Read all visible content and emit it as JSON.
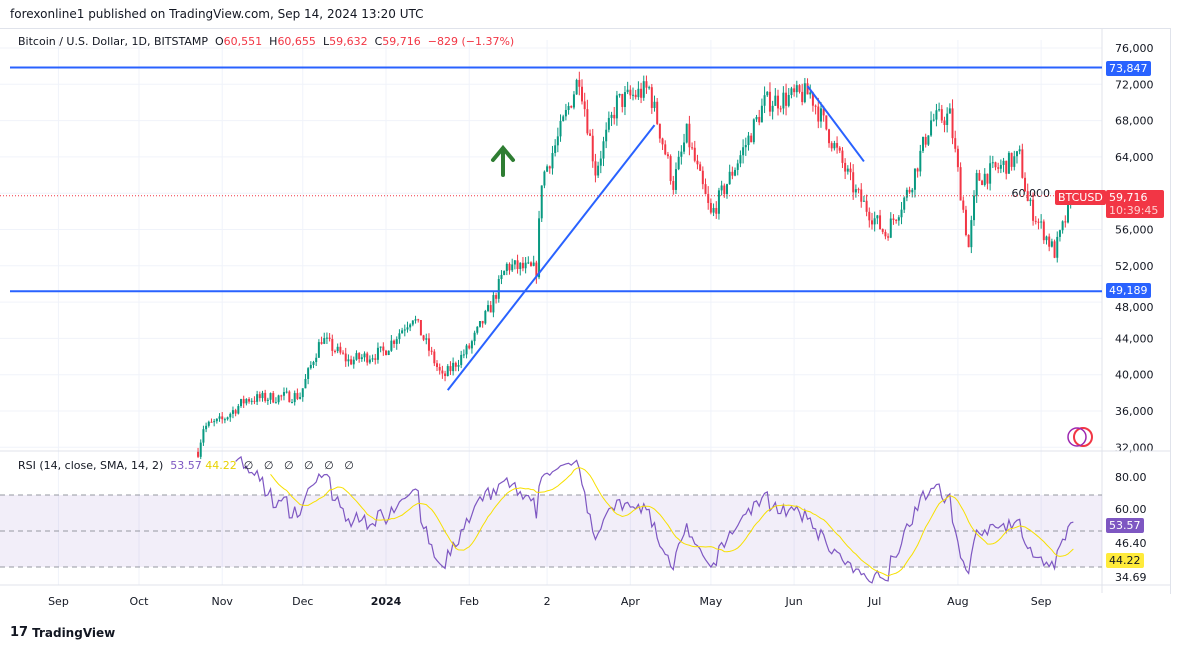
{
  "header": {
    "published": "forexonline1 published on TradingView.com, Sep 14, 2024 13:20 UTC"
  },
  "legend": {
    "symbol": "Bitcoin / U.S. Dollar, 1D, BITSTAMP",
    "o_label": "O",
    "o": "60,551",
    "h_label": "H",
    "h": "60,655",
    "l_label": "L",
    "l": "59,632",
    "c_label": "C",
    "c": "59,716",
    "change": "−829 (−1.37%)"
  },
  "price_tags": {
    "upper_line": "73,847",
    "lower_line": "49,189",
    "symbol_tag": "BTCUSD",
    "last": "59,716",
    "countdown": "10:39:45"
  },
  "rsi": {
    "label": "RSI (14, close, SMA, 14, 2)",
    "value": "53.57",
    "sma": "44.22",
    "extras": [
      "∅",
      "∅",
      "∅",
      "∅",
      "∅",
      "∅"
    ],
    "axis": [
      "80.00",
      "60.00",
      "46.40",
      "34.69"
    ]
  },
  "colors": {
    "up": "#089981",
    "down": "#f23645",
    "line": "#2962ff",
    "rsi": "#7e57c2",
    "sma": "#f7e000",
    "arrow": "#2e7d32"
  },
  "footer": {
    "logo": "TradingView"
  },
  "chart_data": {
    "type": "candlestick",
    "price_axis": [
      "76,000",
      "72,000",
      "68,000",
      "64,000",
      "60,000",
      "56,000",
      "52,000",
      "48,000",
      "44,000",
      "40,000",
      "36,000",
      "32,000"
    ],
    "ylim": [
      32000,
      76000
    ],
    "time_axis": [
      {
        "label": "Sep",
        "date": "2023-09-01"
      },
      {
        "label": "Oct",
        "date": "2023-10-01"
      },
      {
        "label": "Nov",
        "date": "2023-11-01"
      },
      {
        "label": "Dec",
        "date": "2023-12-01"
      },
      {
        "label": "2024",
        "date": "2024-01-01"
      },
      {
        "label": "Feb",
        "date": "2024-02-01"
      },
      {
        "label": "2",
        "date": "2024-03-01"
      },
      {
        "label": "Apr",
        "date": "2024-04-01"
      },
      {
        "label": "May",
        "date": "2024-05-01"
      },
      {
        "label": "Jun",
        "date": "2024-06-01"
      },
      {
        "label": "Jul",
        "date": "2024-07-01"
      },
      {
        "label": "Aug",
        "date": "2024-08-01"
      },
      {
        "label": "Sep",
        "date": "2024-09-01"
      }
    ],
    "approx_closes": [
      [
        "2023-10-23",
        31500
      ],
      [
        "2023-10-25",
        34200
      ],
      [
        "2023-11-01",
        35000
      ],
      [
        "2023-11-10",
        37300
      ],
      [
        "2023-11-30",
        37700
      ],
      [
        "2023-12-05",
        41800
      ],
      [
        "2023-12-08",
        44000
      ],
      [
        "2023-12-18",
        41500
      ],
      [
        "2023-12-31",
        42500
      ],
      [
        "2024-01-11",
        46500
      ],
      [
        "2024-01-22",
        39600
      ],
      [
        "2024-02-01",
        43000
      ],
      [
        "2024-02-09",
        47500
      ],
      [
        "2024-02-15",
        52000
      ],
      [
        "2024-02-26",
        51500
      ],
      [
        "2024-02-28",
        61500
      ],
      [
        "2024-03-05",
        66000
      ],
      [
        "2024-03-13",
        73000
      ],
      [
        "2024-03-19",
        62500
      ],
      [
        "2024-03-27",
        70000
      ],
      [
        "2024-04-08",
        71500
      ],
      [
        "2024-04-17",
        61000
      ],
      [
        "2024-04-22",
        66500
      ],
      [
        "2024-05-01",
        57500
      ],
      [
        "2024-05-15",
        66000
      ],
      [
        "2024-05-21",
        70000
      ],
      [
        "2024-06-07",
        71000
      ],
      [
        "2024-06-24",
        60000
      ],
      [
        "2024-07-05",
        55500
      ],
      [
        "2024-07-14",
        60500
      ],
      [
        "2024-07-22",
        68000
      ],
      [
        "2024-07-29",
        68500
      ],
      [
        "2024-08-05",
        54000
      ],
      [
        "2024-08-08",
        61500
      ],
      [
        "2024-08-24",
        64000
      ],
      [
        "2024-08-27",
        59000
      ],
      [
        "2024-09-06",
        53500
      ],
      [
        "2024-09-13",
        59716
      ]
    ],
    "horizontal_lines": [
      73847,
      49189
    ],
    "trendlines": [
      [
        [
          "2024-01-24",
          38300
        ],
        [
          "2024-04-10",
          67500
        ]
      ],
      [
        [
          "2024-06-06",
          71800
        ],
        [
          "2024-06-27",
          63500
        ]
      ]
    ]
  }
}
